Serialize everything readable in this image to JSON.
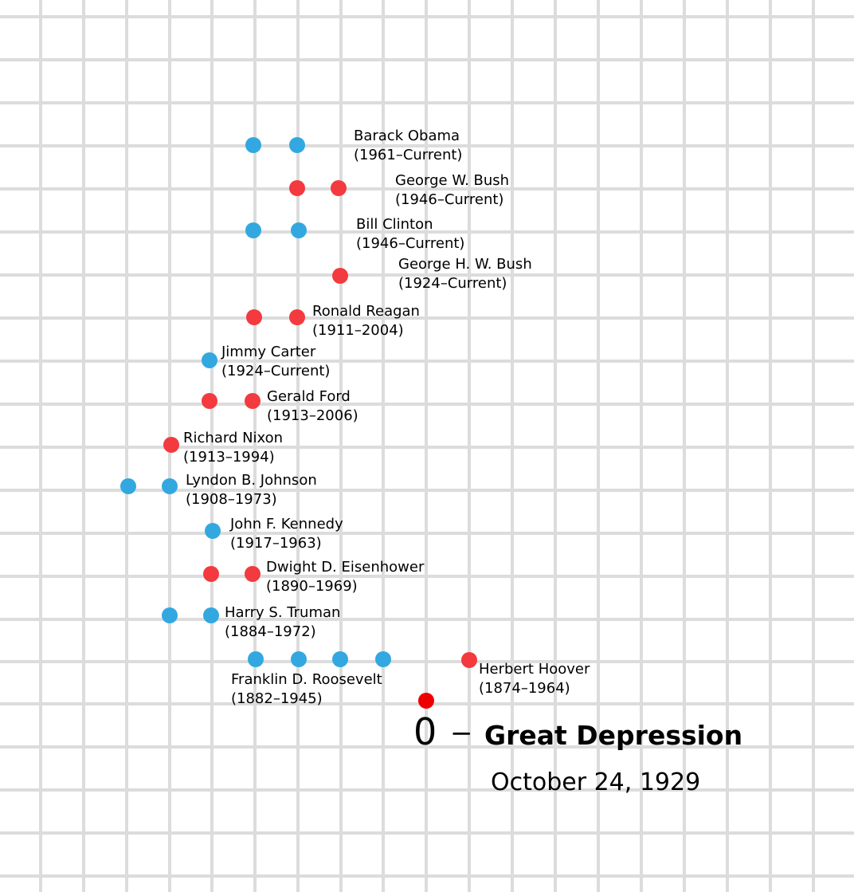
{
  "colors": {
    "grid": "#dcdcdc",
    "democrat": "#33a8e0",
    "republican": "#f33a3f",
    "origin": "#ee0000"
  },
  "origin": {
    "marker": "0",
    "dash": "−",
    "event": "Great Depression",
    "date": "October 24, 1929"
  },
  "presidents": [
    {
      "name": "Herbert Hoover",
      "years": "(1874–1964)",
      "party": "republican",
      "dots": 1
    },
    {
      "name": "Franklin D. Roosevelt",
      "years": "(1882–1945)",
      "party": "democrat",
      "dots": 4
    },
    {
      "name": "Harry S. Truman",
      "years": "(1884–1972)",
      "party": "democrat",
      "dots": 2
    },
    {
      "name": "Dwight D. Eisenhower",
      "years": "(1890–1969)",
      "party": "republican",
      "dots": 2
    },
    {
      "name": "John F. Kennedy",
      "years": "(1917–1963)",
      "party": "democrat",
      "dots": 1
    },
    {
      "name": "Lyndon B. Johnson",
      "years": "(1908–1973)",
      "party": "democrat",
      "dots": 2
    },
    {
      "name": "Richard Nixon",
      "years": "(1913–1994)",
      "party": "republican",
      "dots": 1
    },
    {
      "name": "Gerald Ford",
      "years": "(1913–2006)",
      "party": "republican",
      "dots": 2
    },
    {
      "name": "Jimmy Carter",
      "years": "(1924–Current)",
      "party": "democrat",
      "dots": 1
    },
    {
      "name": "Ronald Reagan",
      "years": "(1911–2004)",
      "party": "republican",
      "dots": 2
    },
    {
      "name": "George H. W. Bush",
      "years": "(1924–Current)",
      "party": "republican",
      "dots": 1
    },
    {
      "name": "Bill Clinton",
      "years": "(1946–Current)",
      "party": "democrat",
      "dots": 2
    },
    {
      "name": "George W. Bush",
      "years": "(1946–Current)",
      "party": "republican",
      "dots": 2
    },
    {
      "name": "Barack Obama",
      "years": "(1961–Current)",
      "party": "democrat",
      "dots": 2
    }
  ]
}
